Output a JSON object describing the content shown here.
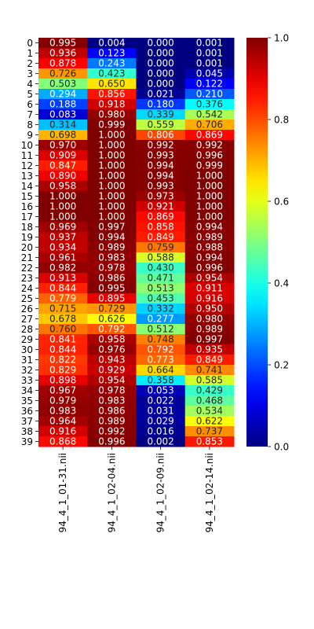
{
  "chart_data": {
    "type": "heatmap",
    "colormap": "jet",
    "x_categories": [
      "94_4_1_01-31.nii",
      "94_4_1_02-04.nii",
      "94_4_1_02-09.nii",
      "94_4_1_02-14.nii"
    ],
    "y_categories": [
      "0",
      "1",
      "2",
      "3",
      "4",
      "5",
      "6",
      "7",
      "8",
      "9",
      "10",
      "11",
      "12",
      "13",
      "14",
      "15",
      "16",
      "17",
      "18",
      "19",
      "20",
      "21",
      "22",
      "23",
      "24",
      "25",
      "26",
      "27",
      "28",
      "29",
      "30",
      "31",
      "32",
      "33",
      "34",
      "35",
      "36",
      "37",
      "38",
      "39"
    ],
    "values": [
      [
        0.995,
        0.004,
        0.0,
        0.001
      ],
      [
        0.936,
        0.123,
        0.0,
        0.001
      ],
      [
        0.878,
        0.243,
        0.0,
        0.001
      ],
      [
        0.726,
        0.423,
        0.0,
        0.045
      ],
      [
        0.503,
        0.65,
        0.0,
        0.122
      ],
      [
        0.294,
        0.856,
        0.021,
        0.21
      ],
      [
        0.188,
        0.918,
        0.18,
        0.376
      ],
      [
        0.083,
        0.98,
        0.339,
        0.542
      ],
      [
        0.314,
        0.999,
        0.559,
        0.706
      ],
      [
        0.698,
        1.0,
        0.806,
        0.869
      ],
      [
        0.97,
        1.0,
        0.992,
        0.992
      ],
      [
        0.909,
        1.0,
        0.993,
        0.996
      ],
      [
        0.847,
        1.0,
        0.994,
        0.999
      ],
      [
        0.89,
        1.0,
        0.994,
        1.0
      ],
      [
        0.958,
        1.0,
        0.993,
        1.0
      ],
      [
        1.0,
        1.0,
        0.973,
        1.0
      ],
      [
        1.0,
        1.0,
        0.921,
        1.0
      ],
      [
        1.0,
        1.0,
        0.869,
        1.0
      ],
      [
        0.969,
        0.997,
        0.858,
        0.994
      ],
      [
        0.937,
        0.994,
        0.849,
        0.989
      ],
      [
        0.934,
        0.989,
        0.759,
        0.988
      ],
      [
        0.961,
        0.983,
        0.588,
        0.994
      ],
      [
        0.982,
        0.978,
        0.43,
        0.996
      ],
      [
        0.913,
        0.986,
        0.471,
        0.954
      ],
      [
        0.844,
        0.995,
        0.513,
        0.911
      ],
      [
        0.779,
        0.895,
        0.453,
        0.916
      ],
      [
        0.715,
        0.729,
        0.332,
        0.95
      ],
      [
        0.678,
        0.626,
        0.277,
        0.98
      ],
      [
        0.76,
        0.792,
        0.512,
        0.989
      ],
      [
        0.841,
        0.958,
        0.748,
        0.997
      ],
      [
        0.844,
        0.976,
        0.792,
        0.935
      ],
      [
        0.822,
        0.943,
        0.773,
        0.849
      ],
      [
        0.829,
        0.929,
        0.664,
        0.741
      ],
      [
        0.898,
        0.954,
        0.358,
        0.585
      ],
      [
        0.967,
        0.978,
        0.053,
        0.429
      ],
      [
        0.979,
        0.983,
        0.022,
        0.468
      ],
      [
        0.983,
        0.986,
        0.031,
        0.534
      ],
      [
        0.964,
        0.989,
        0.029,
        0.622
      ],
      [
        0.916,
        0.992,
        0.016,
        0.737
      ],
      [
        0.868,
        0.996,
        0.002,
        0.853
      ]
    ],
    "value_format": "3 decimals",
    "colorbar": {
      "range": [
        0.0,
        1.0
      ],
      "ticks": [
        "0.0",
        "0.2",
        "0.4",
        "0.6",
        "0.8",
        "1.0"
      ]
    },
    "title": "",
    "xlabel": "",
    "ylabel": ""
  }
}
